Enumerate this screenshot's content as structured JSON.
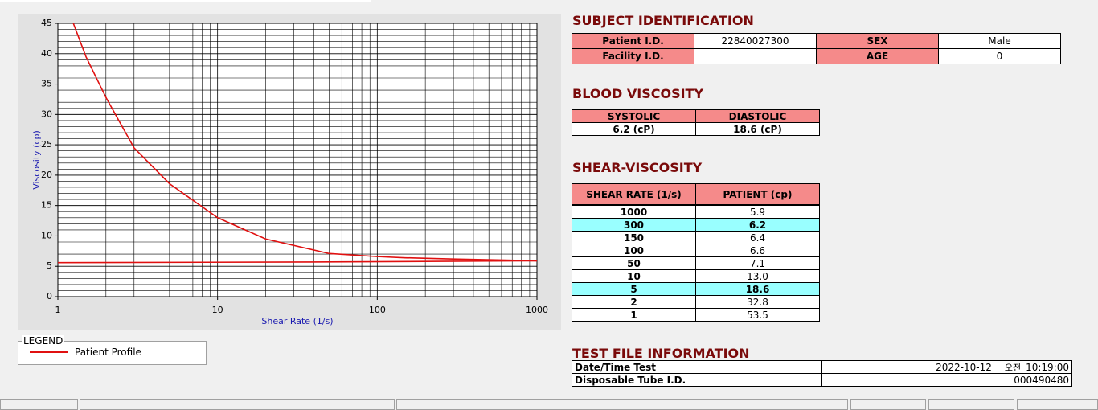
{
  "chart_data": {
    "type": "line",
    "xlabel": "Shear Rate (1/s)",
    "ylabel": "Viscosity (cp)",
    "xscale": "log",
    "xlim": [
      1,
      1000
    ],
    "xticks": [
      1,
      10,
      100,
      1000
    ],
    "ylim": [
      0,
      45
    ],
    "yticks": [
      0,
      5,
      10,
      15,
      20,
      25,
      30,
      35,
      40,
      45
    ],
    "grid": true,
    "legend_title": "LEGEND",
    "series": [
      {
        "name": "Patient Profile",
        "color": "#e01010",
        "x": [
          1.25,
          1.5,
          2,
          3,
          5,
          10,
          20,
          50,
          100,
          150,
          300,
          1000
        ],
        "values": [
          45,
          39.5,
          32.8,
          24.5,
          18.6,
          13.0,
          9.5,
          7.1,
          6.6,
          6.4,
          6.2,
          5.9
        ]
      },
      {
        "color": "#e01010",
        "x": [
          1,
          38,
          1000
        ],
        "values": [
          5.6,
          5.7,
          5.9
        ]
      }
    ]
  },
  "subject": {
    "title": "SUBJECT IDENTIFICATION",
    "fields": [
      {
        "label": "Patient I.D.",
        "value": "22840027300"
      },
      {
        "label": "SEX",
        "value": "Male"
      },
      {
        "label": "Facility I.D."
      },
      {
        "label": "AGE",
        "value": "0"
      }
    ]
  },
  "blood": {
    "title": "BLOOD VISCOSITY",
    "headers": [
      "SYSTOLIC",
      "DIASTOLIC"
    ],
    "values": [
      "6.2 (cP)",
      "18.6 (cP)"
    ]
  },
  "shear": {
    "title": "SHEAR-VISCOSITY",
    "headers": [
      "SHEAR RATE (1/s)",
      "PATIENT (cp)"
    ],
    "rows": [
      {
        "rate": "1000",
        "value": "5.9"
      },
      {
        "rate": "300",
        "value": "6.2",
        "highlight": true
      },
      {
        "rate": "150",
        "value": "6.4"
      },
      {
        "rate": "100",
        "value": "6.6"
      },
      {
        "rate": "50",
        "value": "7.1"
      },
      {
        "rate": "10",
        "value": "13.0"
      },
      {
        "rate": "5",
        "value": "18.6",
        "highlight": true
      },
      {
        "rate": "2",
        "value": "32.8"
      },
      {
        "rate": "1",
        "value": "53.5"
      }
    ]
  },
  "test_file": {
    "title": "TEST FILE INFORMATION",
    "date_label": "Date/Time Test",
    "date": "2022-10-12",
    "ampm": "오전",
    "time": "10:19:00",
    "tube_label": "Disposable Tube I.D.",
    "tube": "000490480"
  }
}
